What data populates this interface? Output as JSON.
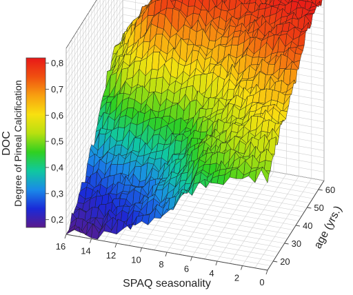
{
  "chart_data": {
    "type": "surface3d",
    "title": "",
    "colorbar": {
      "label_line1": "DOC",
      "label_line2": "Degree of Pineal Calcification",
      "ticks": [
        "0,8",
        "0,7",
        "0,6",
        "0,5",
        "0,4",
        "0,3",
        "0,2"
      ],
      "range": [
        0.17,
        0.82
      ],
      "colors": [
        "#5a1a8c",
        "#1a2ad8",
        "#1a8ae8",
        "#10c8a0",
        "#30d020",
        "#b8e010",
        "#f8e010",
        "#f8a010",
        "#f05010",
        "#e81818"
      ]
    },
    "x_axis": {
      "label": "SPAQ seasonality",
      "ticks": [
        "16",
        "14",
        "12",
        "10",
        "8",
        "6",
        "4",
        "2",
        "0"
      ],
      "range": [
        0,
        16
      ]
    },
    "y_axis": {
      "label": "age (yrs.)",
      "ticks": [
        "20",
        "30",
        "40",
        "50",
        "60"
      ],
      "range": [
        15,
        65
      ]
    },
    "z_range": [
      0.17,
      0.82
    ],
    "grid": true,
    "surface": {
      "seasonality": [
        0,
        2,
        4,
        6,
        8,
        10,
        12,
        14,
        16
      ],
      "age": [
        15,
        20,
        25,
        30,
        35,
        40,
        45,
        50,
        55,
        60,
        65
      ],
      "doc": [
        [
          0.5,
          0.55,
          0.58,
          0.6,
          0.63,
          0.68,
          0.74,
          0.78,
          0.8,
          0.82,
          0.8
        ],
        [
          0.48,
          0.52,
          0.56,
          0.6,
          0.62,
          0.66,
          0.72,
          0.77,
          0.78,
          0.82,
          0.82
        ],
        [
          0.45,
          0.49,
          0.52,
          0.55,
          0.58,
          0.62,
          0.68,
          0.74,
          0.76,
          0.78,
          0.78
        ],
        [
          0.4,
          0.44,
          0.48,
          0.5,
          0.52,
          0.56,
          0.62,
          0.68,
          0.73,
          0.78,
          0.78
        ],
        [
          0.3,
          0.34,
          0.38,
          0.42,
          0.45,
          0.5,
          0.58,
          0.65,
          0.72,
          0.78,
          0.78
        ],
        [
          0.25,
          0.28,
          0.3,
          0.34,
          0.4,
          0.47,
          0.56,
          0.66,
          0.74,
          0.8,
          0.8
        ],
        [
          0.22,
          0.24,
          0.27,
          0.31,
          0.38,
          0.46,
          0.55,
          0.68,
          0.78,
          0.82,
          0.8
        ],
        [
          0.19,
          0.21,
          0.24,
          0.28,
          0.34,
          0.42,
          0.52,
          0.6,
          0.66,
          0.68,
          0.66
        ],
        [
          0.17,
          0.19,
          0.22,
          0.25,
          0.3,
          0.35,
          0.42,
          0.48,
          0.52,
          0.55,
          0.55
        ]
      ]
    }
  }
}
